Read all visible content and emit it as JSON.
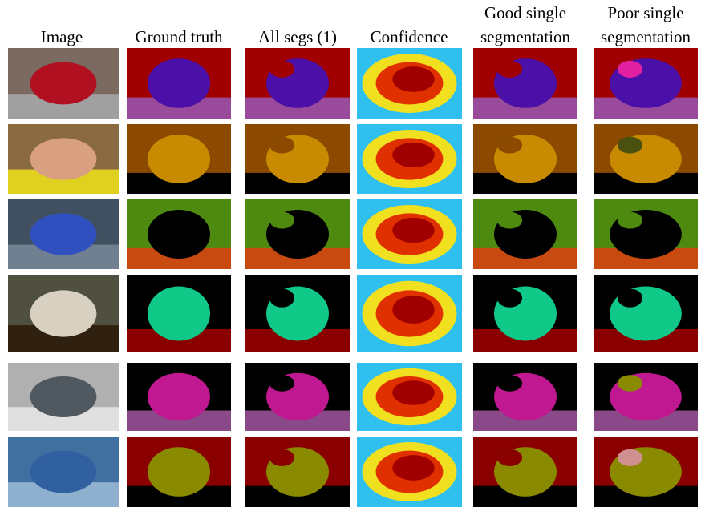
{
  "columns": [
    {
      "lines": [
        "Image"
      ]
    },
    {
      "lines": [
        "Ground truth"
      ]
    },
    {
      "lines": [
        "All segs (1)"
      ]
    },
    {
      "lines": [
        "Confidence"
      ]
    },
    {
      "lines": [
        "Good single",
        "segmentation"
      ]
    },
    {
      "lines": [
        "Poor single",
        "segmentation"
      ]
    }
  ]
}
